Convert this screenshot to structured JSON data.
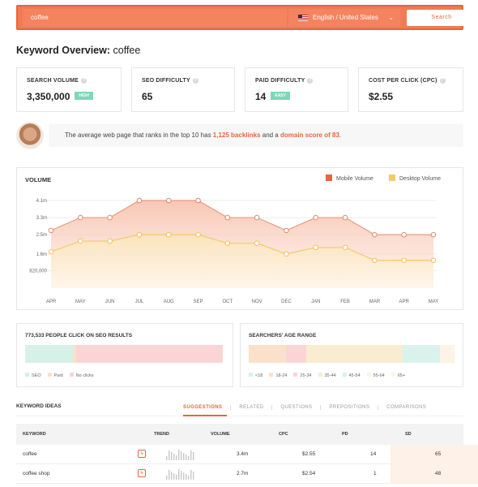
{
  "search": {
    "value": "coffee",
    "language": "English / United States",
    "button": "Search"
  },
  "title": {
    "prefix": "Keyword Overview:",
    "keyword": "coffee"
  },
  "metrics": [
    {
      "label": "SEARCH VOLUME",
      "value": "3,350,000",
      "badge": "HIGH"
    },
    {
      "label": "SEO DIFFICULTY",
      "value": "65",
      "badge": ""
    },
    {
      "label": "PAID DIFFICULTY",
      "value": "14",
      "badge": "EASY"
    },
    {
      "label": "COST PER CLICK (CPC)",
      "value": "$2.55",
      "badge": ""
    }
  ],
  "banner": {
    "before": "The average web page that ranks in the top 10 has ",
    "backlinks": "1,125 backlinks",
    "middle": " and a ",
    "domain": "domain score of 83",
    "after": "."
  },
  "volume": {
    "title": "VOLUME",
    "legend": [
      "Mobile Volume",
      "Desktop Volume"
    ],
    "colors": {
      "mobile": "#e8653b",
      "desktop": "#f5c96b"
    }
  },
  "chart_data": {
    "type": "area",
    "title": "VOLUME",
    "categories": [
      "APR",
      "MAY",
      "JUN",
      "JUL",
      "AUG",
      "SEP",
      "OCT",
      "NOV",
      "DEC",
      "JAN",
      "FEB",
      "MAR",
      "APR",
      "MAY"
    ],
    "y_ticks": [
      "4.1m",
      "3.3m",
      "2.5m",
      "1.6m",
      "820,000"
    ],
    "ylim": [
      0,
      4100000
    ],
    "series": [
      {
        "name": "Mobile Volume",
        "values": [
          2700000,
          3300000,
          3300000,
          4100000,
          4100000,
          4100000,
          3300000,
          3300000,
          2700000,
          3300000,
          3300000,
          2500000,
          2500000,
          2500000
        ]
      },
      {
        "name": "Desktop Volume",
        "values": [
          1700000,
          2200000,
          2200000,
          2500000,
          2500000,
          2500000,
          2100000,
          2100000,
          1600000,
          1900000,
          1900000,
          1300000,
          1300000,
          1300000
        ]
      }
    ]
  },
  "seo_clicks": {
    "title": "773,533 PEOPLE CLICK ON SEO RESULTS",
    "segments": [
      {
        "label": "SEO",
        "color": "#d6f1e8",
        "share": 0.24
      },
      {
        "label": "Paid",
        "color": "#fbe1c9",
        "share": 0.02
      },
      {
        "label": "No clicks",
        "color": "#fbd5d5",
        "share": 0.74
      }
    ]
  },
  "age_range": {
    "title": "SEARCHERS' AGE RANGE",
    "segments": [
      {
        "label": "<18",
        "color": "#d6f1e8",
        "share": 0.0
      },
      {
        "label": "18-24",
        "color": "#fbe1c9",
        "share": 0.18
      },
      {
        "label": "25-34",
        "color": "#fbd5d5",
        "share": 0.1
      },
      {
        "label": "35-44",
        "color": "#f9ecd0",
        "share": 0.47
      },
      {
        "label": "45-54",
        "color": "#d9f3ec",
        "share": 0.18
      },
      {
        "label": "55-64",
        "color": "#fdf3e6",
        "share": 0.07
      },
      {
        "label": "65+",
        "color": "#fff6e6",
        "share": 0.0
      }
    ]
  },
  "keyword_ideas": {
    "title": "KEYWORD IDEAS",
    "tabs": [
      "SUGGESTIONS",
      "RELATED",
      "QUESTIONS",
      "PREPOSITIONS",
      "COMPARISONS"
    ],
    "columns": [
      "KEYWORD",
      "TREND",
      "VOLUME",
      "CPC",
      "PD",
      "SD"
    ],
    "rows": [
      {
        "keyword": "coffee",
        "volume": "3.4m",
        "cpc": "$2.55",
        "pd": "14",
        "sd": "65"
      },
      {
        "keyword": "coffee shop",
        "volume": "2.7m",
        "cpc": "$2.54",
        "pd": "1",
        "sd": "48"
      }
    ]
  }
}
